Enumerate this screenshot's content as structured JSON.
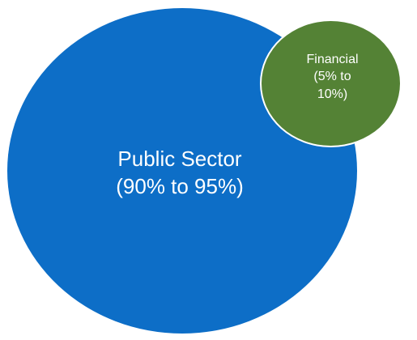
{
  "diagram": {
    "public_sector": {
      "label": "Public  Sector\n(90% to 95%)",
      "color": "#0d6ec7"
    },
    "financial": {
      "label": "Financial\n(5% to\n10%)",
      "color": "#548235"
    }
  }
}
